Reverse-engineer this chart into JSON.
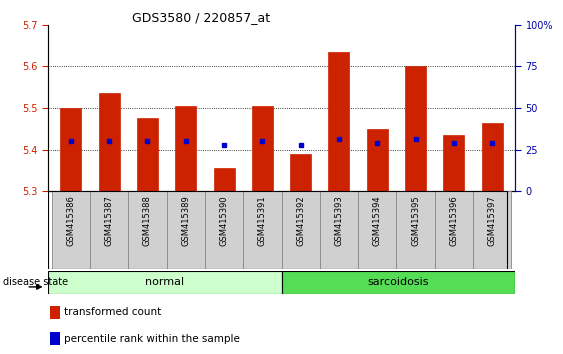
{
  "title": "GDS3580 / 220857_at",
  "samples": [
    "GSM415386",
    "GSM415387",
    "GSM415388",
    "GSM415389",
    "GSM415390",
    "GSM415391",
    "GSM415392",
    "GSM415393",
    "GSM415394",
    "GSM415395",
    "GSM415396",
    "GSM415397"
  ],
  "bar_tops": [
    5.5,
    5.535,
    5.475,
    5.505,
    5.355,
    5.505,
    5.39,
    5.635,
    5.45,
    5.6,
    5.435,
    5.465
  ],
  "bar_bottom": 5.3,
  "blue_dots": [
    5.42,
    5.42,
    5.42,
    5.42,
    5.41,
    5.42,
    5.41,
    5.425,
    5.415,
    5.425,
    5.415,
    5.415
  ],
  "ylim": [
    5.3,
    5.7
  ],
  "yticks": [
    5.3,
    5.4,
    5.5,
    5.6,
    5.7
  ],
  "y2ticks": [
    0,
    25,
    50,
    75,
    100
  ],
  "y2labels": [
    "0",
    "25",
    "50",
    "75",
    "100%"
  ],
  "bar_color": "#CC2200",
  "dot_color": "#0000CC",
  "group_normal_color": "#CCFFCC",
  "group_sarcoidosis_color": "#55DD55",
  "groups": [
    {
      "label": "normal",
      "start": 0,
      "end": 6
    },
    {
      "label": "sarcoidosis",
      "start": 6,
      "end": 12
    }
  ],
  "disease_label": "disease state",
  "legend_items": [
    {
      "color": "#CC2200",
      "label": "transformed count"
    },
    {
      "color": "#0000CC",
      "label": "percentile rank within the sample"
    }
  ],
  "tick_label_color_left": "#CC2200",
  "tick_label_color_right": "#0000AA",
  "bar_width": 0.55,
  "xtick_bg_color": "#D0D0D0",
  "plot_bg_color": "#FFFFFF"
}
